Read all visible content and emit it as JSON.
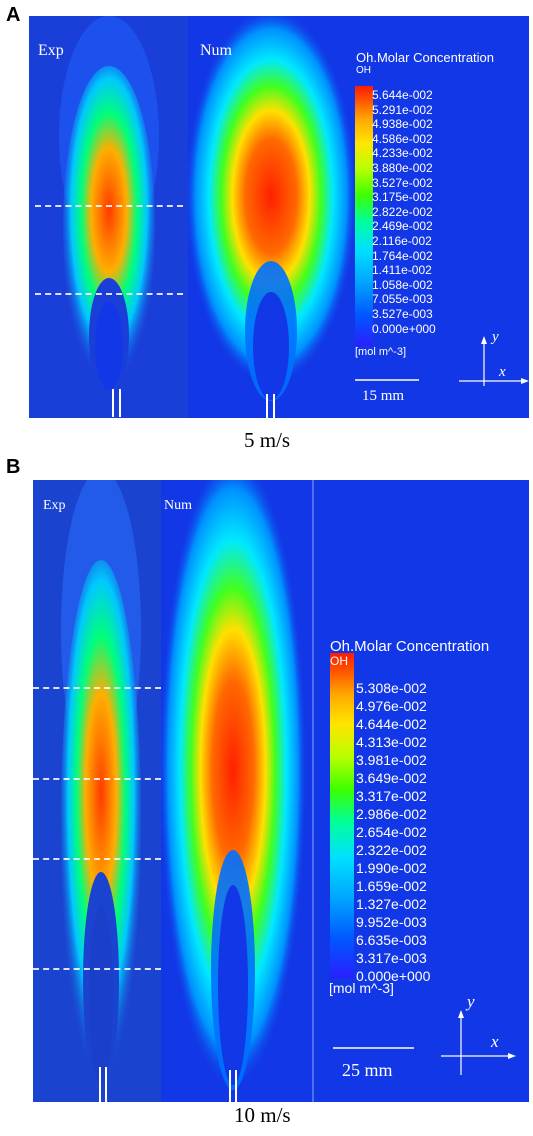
{
  "panel_a": {
    "letter": "A",
    "exp_label": "Exp",
    "num_label": "Num",
    "legend_title": "Oh.Molar Concentration",
    "legend_subtitle": "OH",
    "legend_ticks": [
      "5.644e-002",
      "5.291e-002",
      "4.938e-002",
      "4.586e-002",
      "4.233e-002",
      "3.880e-002",
      "3.527e-002",
      "3.175e-002",
      "2.822e-002",
      "2.469e-002",
      "2.116e-002",
      "1.764e-002",
      "1.411e-002",
      "1.058e-002",
      "7.055e-003",
      "3.527e-003",
      "0.000e+000"
    ],
    "legend_unit": "[mol m^-3]",
    "scale_label": "15 mm",
    "axis_y": "y",
    "axis_x": "x",
    "caption": "5 m/s"
  },
  "panel_b": {
    "letter": "B",
    "exp_label": "Exp",
    "num_label": "Num",
    "legend_title": "Oh.Molar Concentration",
    "legend_subtitle": "OH",
    "legend_ticks": [
      "5.308e-002",
      "4.976e-002",
      "4.644e-002",
      "4.313e-002",
      "3.981e-002",
      "3.649e-002",
      "3.317e-002",
      "2.986e-002",
      "2.654e-002",
      "2.322e-002",
      "1.990e-002",
      "1.659e-002",
      "1.327e-002",
      "9.952e-003",
      "6.635e-003",
      "3.317e-003",
      "0.000e+000"
    ],
    "legend_unit": "[mol m^-3]",
    "scale_label": "25 mm",
    "axis_y": "y",
    "axis_x": "x",
    "caption": "10 m/s"
  },
  "colors": {
    "background_blue": "#1237e6",
    "colormap": [
      "#2a1fff",
      "#0057ff",
      "#00a8ff",
      "#00e0ff",
      "#00ff9a",
      "#3cff00",
      "#b8ff00",
      "#ffe600",
      "#ffaa00",
      "#ff5a00",
      "#ff1a00"
    ]
  }
}
